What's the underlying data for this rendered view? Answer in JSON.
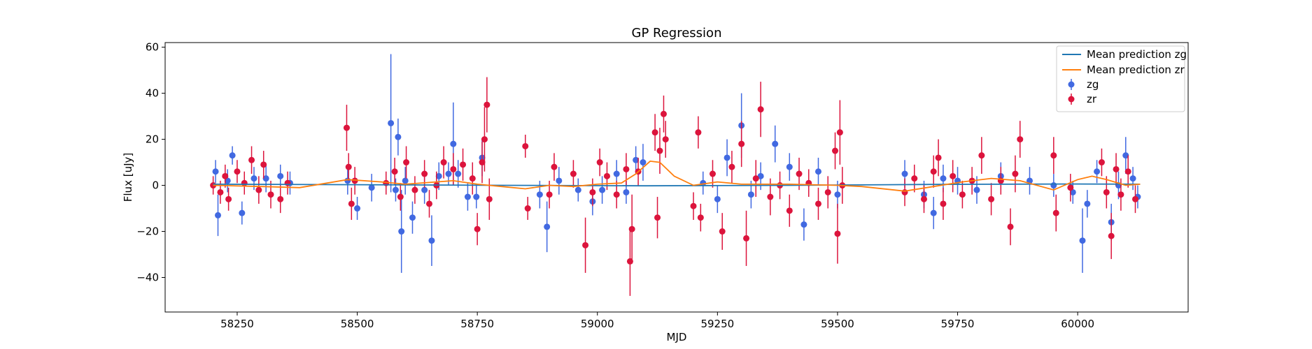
{
  "chart_data": {
    "type": "scatter",
    "title": "GP Regression",
    "xlabel": "MJD",
    "ylabel": "Flux [uJy]",
    "xlim": [
      58100,
      60230
    ],
    "ylim": [
      -55,
      62
    ],
    "xticks": [
      58250,
      58500,
      58750,
      59000,
      59250,
      59500,
      59750,
      60000
    ],
    "yticks": [
      -40,
      -20,
      0,
      20,
      40,
      60
    ],
    "grid": false,
    "legend": {
      "placement": "top-right",
      "entries": [
        "Mean prediction zg",
        "Mean prediction zr",
        "zg",
        "zr"
      ]
    },
    "series": [
      {
        "name": "Mean prediction zg",
        "kind": "line",
        "color": "#1f77b4",
        "x": [
          58200,
          58500,
          58800,
          59100,
          59400,
          59700,
          60000,
          60130
        ],
        "y": [
          0.5,
          0.3,
          0.0,
          -0.2,
          0.0,
          0.4,
          0.6,
          0.5
        ]
      },
      {
        "name": "Mean prediction zr",
        "kind": "line",
        "color": "#ff7f0e",
        "x": [
          58200,
          58300,
          58380,
          58480,
          58550,
          58600,
          58700,
          58750,
          58800,
          58850,
          58900,
          58950,
          59000,
          59050,
          59080,
          59110,
          59130,
          59160,
          59200,
          59250,
          59300,
          59400,
          59500,
          59550,
          59640,
          59700,
          59760,
          59820,
          59880,
          59950,
          60000,
          60030,
          60060,
          60100,
          60130
        ],
        "y": [
          0,
          -0.5,
          -1,
          2.5,
          1.5,
          0.5,
          2,
          0.5,
          -0.5,
          -1.5,
          0,
          -0.5,
          0.5,
          1,
          5,
          10.5,
          10,
          4,
          0,
          1.5,
          0.5,
          0.5,
          0,
          -0.5,
          -2.5,
          -0.5,
          1.5,
          3,
          2,
          -2,
          2.5,
          4,
          2.5,
          0,
          0.5
        ]
      },
      {
        "name": "zg",
        "kind": "errorbar",
        "color": "#4169e1",
        "points": [
          [
            58205,
            6,
            5
          ],
          [
            58210,
            -13,
            9
          ],
          [
            58230,
            2,
            5
          ],
          [
            58240,
            13,
            4
          ],
          [
            58260,
            -12,
            5
          ],
          [
            58285,
            3,
            5
          ],
          [
            58310,
            3,
            6
          ],
          [
            58340,
            4,
            5
          ],
          [
            58360,
            1,
            5
          ],
          [
            58480,
            2,
            6
          ],
          [
            58500,
            -10,
            5
          ],
          [
            58530,
            -1,
            6
          ],
          [
            58570,
            27,
            30
          ],
          [
            58580,
            -2,
            5
          ],
          [
            58585,
            21,
            8
          ],
          [
            58592,
            -20,
            18
          ],
          [
            58600,
            2,
            6
          ],
          [
            58615,
            -14,
            7
          ],
          [
            58640,
            -2,
            6
          ],
          [
            58655,
            -24,
            11
          ],
          [
            58670,
            4,
            6
          ],
          [
            58690,
            5,
            5
          ],
          [
            58700,
            18,
            18
          ],
          [
            58710,
            5,
            6
          ],
          [
            58730,
            -5,
            6
          ],
          [
            58748,
            -5,
            5
          ],
          [
            58760,
            12,
            8
          ],
          [
            58880,
            -4,
            6
          ],
          [
            58895,
            -18,
            11
          ],
          [
            58920,
            2,
            6
          ],
          [
            58960,
            -2,
            5
          ],
          [
            58990,
            -7,
            6
          ],
          [
            59010,
            -2,
            6
          ],
          [
            59040,
            5,
            6
          ],
          [
            59060,
            -3,
            5
          ],
          [
            59080,
            11,
            6
          ],
          [
            59095,
            10,
            8
          ],
          [
            59220,
            1,
            5
          ],
          [
            59250,
            -6,
            6
          ],
          [
            59270,
            12,
            8
          ],
          [
            59300,
            26,
            14
          ],
          [
            59320,
            -4,
            6
          ],
          [
            59340,
            4,
            6
          ],
          [
            59370,
            18,
            8
          ],
          [
            59400,
            8,
            6
          ],
          [
            59430,
            -17,
            7
          ],
          [
            59460,
            6,
            6
          ],
          [
            59500,
            -4,
            6
          ],
          [
            59640,
            5,
            6
          ],
          [
            59680,
            -4,
            6
          ],
          [
            59700,
            -12,
            7
          ],
          [
            59720,
            3,
            6
          ],
          [
            59750,
            2,
            6
          ],
          [
            59790,
            -2,
            6
          ],
          [
            59840,
            4,
            6
          ],
          [
            59900,
            2,
            6
          ],
          [
            59950,
            0,
            5
          ],
          [
            59990,
            -3,
            5
          ],
          [
            60010,
            -24,
            14
          ],
          [
            60020,
            -8,
            6
          ],
          [
            60040,
            6,
            5
          ],
          [
            60070,
            -16,
            8
          ],
          [
            60085,
            0,
            6
          ],
          [
            60100,
            13,
            8
          ],
          [
            60115,
            3,
            5
          ],
          [
            60125,
            -5,
            5
          ]
        ]
      },
      {
        "name": "zr",
        "kind": "errorbar",
        "color": "#dc143c",
        "points": [
          [
            58200,
            0,
            4
          ],
          [
            58215,
            -3,
            5
          ],
          [
            58225,
            4,
            5
          ],
          [
            58232,
            -6,
            5
          ],
          [
            58250,
            6,
            5
          ],
          [
            58265,
            1,
            5
          ],
          [
            58280,
            11,
            6
          ],
          [
            58295,
            -2,
            6
          ],
          [
            58305,
            9,
            6
          ],
          [
            58320,
            -4,
            6
          ],
          [
            58340,
            -6,
            6
          ],
          [
            58355,
            1,
            5
          ],
          [
            58478,
            25,
            10
          ],
          [
            58482,
            8,
            6
          ],
          [
            58488,
            -8,
            7
          ],
          [
            58495,
            2,
            6
          ],
          [
            58560,
            1,
            5
          ],
          [
            58578,
            6,
            6
          ],
          [
            58590,
            -5,
            6
          ],
          [
            58602,
            10,
            7
          ],
          [
            58620,
            -2,
            6
          ],
          [
            58640,
            5,
            6
          ],
          [
            58650,
            -8,
            6
          ],
          [
            58665,
            0,
            6
          ],
          [
            58680,
            10,
            7
          ],
          [
            58700,
            7,
            7
          ],
          [
            58720,
            9,
            7
          ],
          [
            58740,
            3,
            7
          ],
          [
            58750,
            -19,
            7
          ],
          [
            58760,
            10,
            9
          ],
          [
            58765,
            20,
            14
          ],
          [
            58770,
            35,
            12
          ],
          [
            58775,
            -6,
            9
          ],
          [
            58850,
            17,
            5
          ],
          [
            58855,
            -10,
            5
          ],
          [
            58900,
            -4,
            6
          ],
          [
            58910,
            8,
            6
          ],
          [
            58950,
            5,
            6
          ],
          [
            58975,
            -26,
            12
          ],
          [
            58990,
            -3,
            6
          ],
          [
            59005,
            10,
            6
          ],
          [
            59020,
            4,
            6
          ],
          [
            59040,
            -4,
            6
          ],
          [
            59060,
            7,
            7
          ],
          [
            59068,
            -33,
            15
          ],
          [
            59072,
            -19,
            15
          ],
          [
            59085,
            6,
            6
          ],
          [
            59120,
            23,
            8
          ],
          [
            59125,
            -14,
            9
          ],
          [
            59130,
            15,
            10
          ],
          [
            59138,
            31,
            8
          ],
          [
            59142,
            20,
            8
          ],
          [
            59200,
            -9,
            6
          ],
          [
            59210,
            23,
            7
          ],
          [
            59215,
            -14,
            6
          ],
          [
            59240,
            5,
            6
          ],
          [
            59260,
            -20,
            8
          ],
          [
            59280,
            8,
            7
          ],
          [
            59300,
            18,
            10
          ],
          [
            59310,
            -23,
            12
          ],
          [
            59330,
            3,
            8
          ],
          [
            59340,
            33,
            12
          ],
          [
            59360,
            -5,
            8
          ],
          [
            59380,
            0,
            6
          ],
          [
            59400,
            -11,
            7
          ],
          [
            59420,
            5,
            7
          ],
          [
            59440,
            1,
            6
          ],
          [
            59460,
            -8,
            7
          ],
          [
            59480,
            -3,
            7
          ],
          [
            59495,
            15,
            8
          ],
          [
            59500,
            -21,
            13
          ],
          [
            59505,
            23,
            14
          ],
          [
            59510,
            0,
            8
          ],
          [
            59640,
            -3,
            6
          ],
          [
            59660,
            3,
            6
          ],
          [
            59680,
            -6,
            6
          ],
          [
            59700,
            6,
            7
          ],
          [
            59710,
            12,
            8
          ],
          [
            59720,
            -8,
            7
          ],
          [
            59740,
            4,
            7
          ],
          [
            59760,
            -4,
            6
          ],
          [
            59780,
            2,
            6
          ],
          [
            59800,
            13,
            8
          ],
          [
            59820,
            -6,
            7
          ],
          [
            59840,
            2,
            6
          ],
          [
            59860,
            -18,
            8
          ],
          [
            59870,
            5,
            8
          ],
          [
            59880,
            20,
            8
          ],
          [
            59950,
            13,
            8
          ],
          [
            59955,
            -12,
            8
          ],
          [
            59985,
            -1,
            6
          ],
          [
            60050,
            10,
            6
          ],
          [
            60060,
            -3,
            7
          ],
          [
            60070,
            -22,
            10
          ],
          [
            60080,
            7,
            7
          ],
          [
            60090,
            -4,
            7
          ],
          [
            60105,
            6,
            7
          ],
          [
            60120,
            -6,
            6
          ]
        ]
      }
    ]
  }
}
